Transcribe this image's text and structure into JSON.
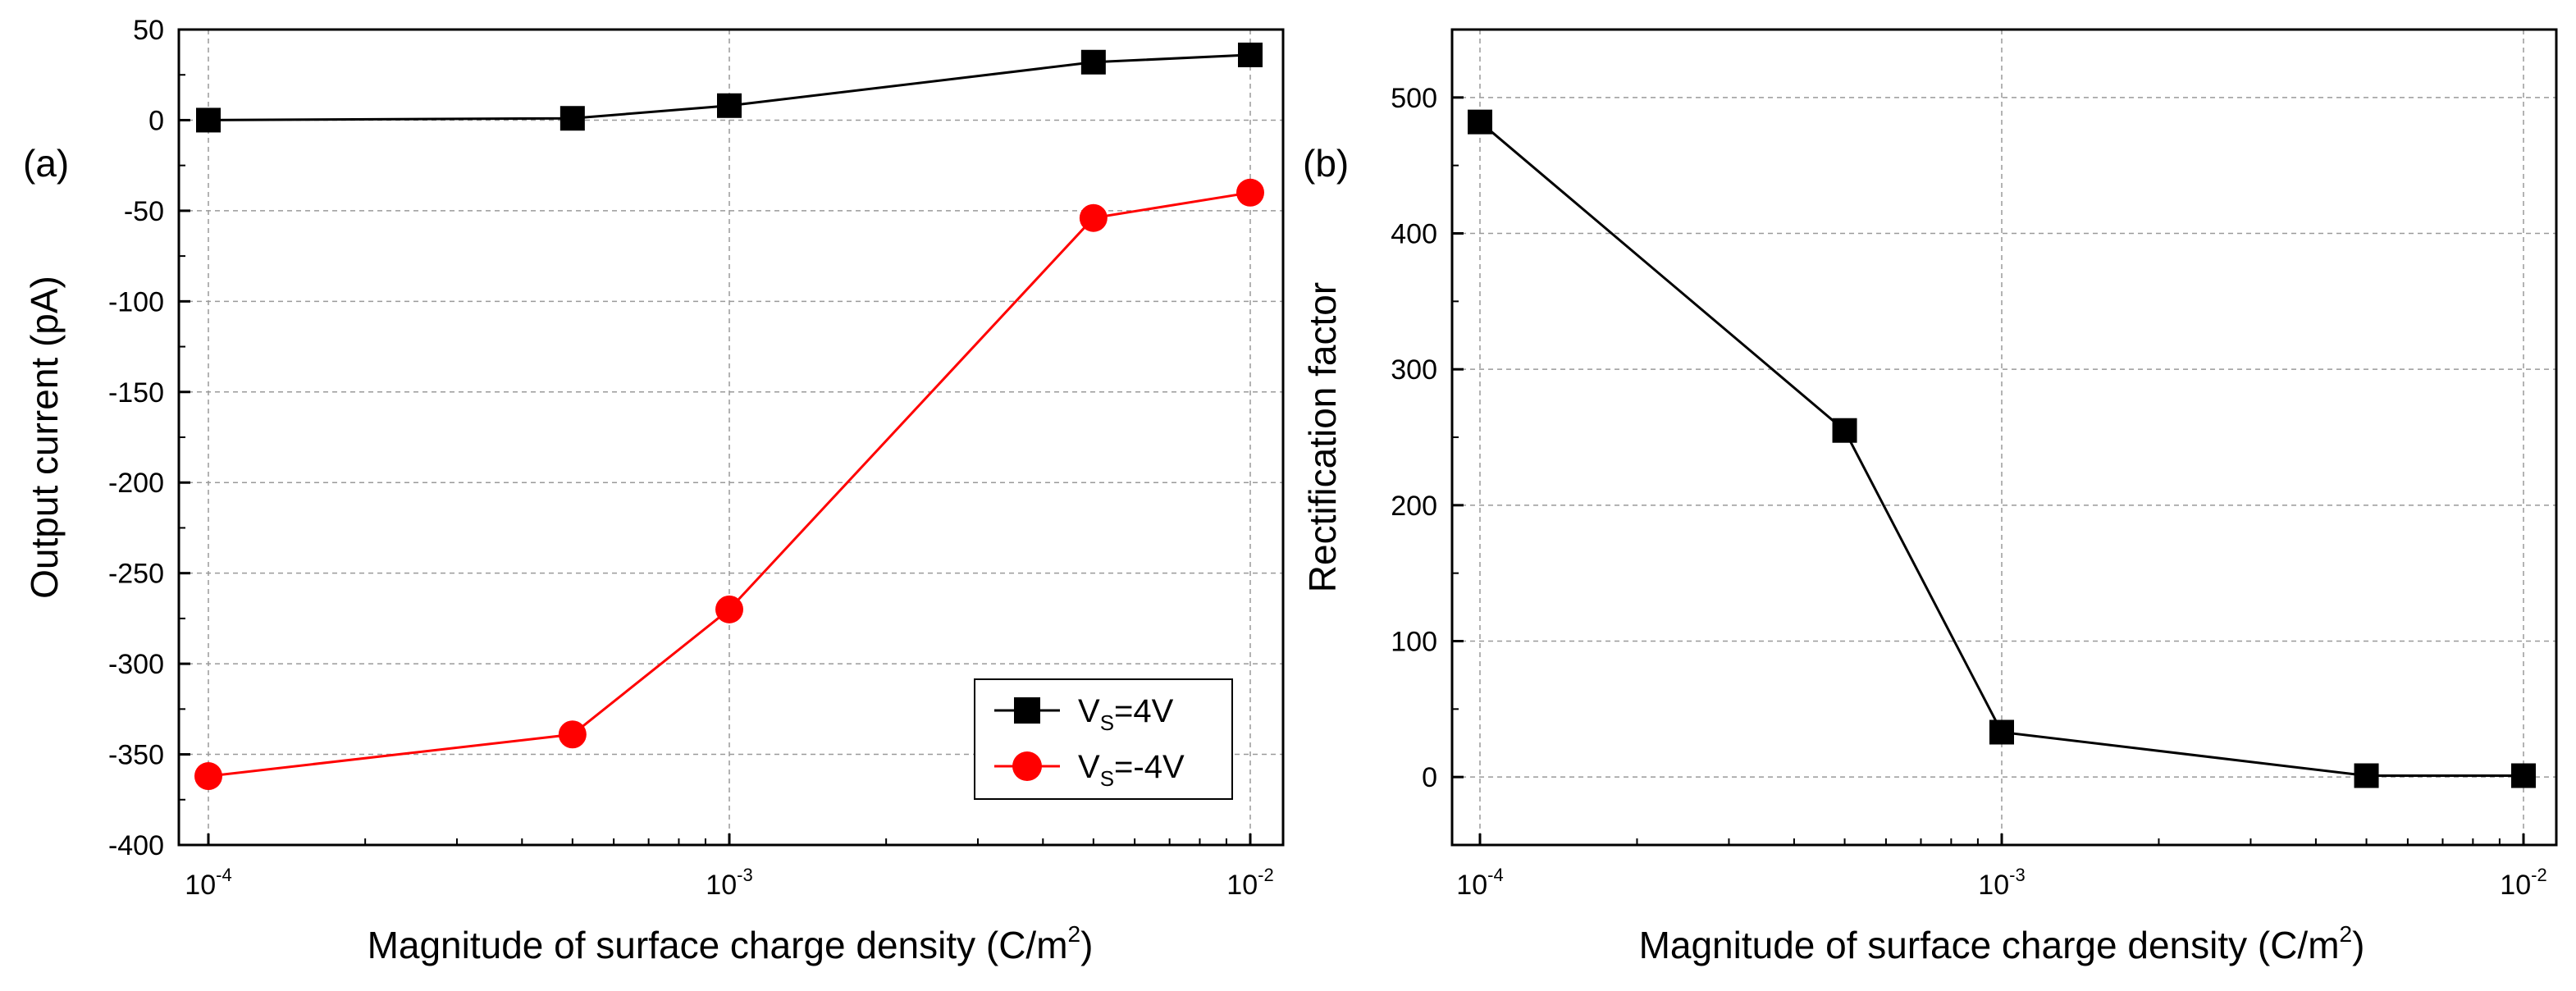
{
  "chart_data": [
    {
      "type": "line",
      "panel_label": "(a)",
      "xscale": "log",
      "x": [
        0.0001,
        0.0005,
        0.001,
        0.005,
        0.01
      ],
      "series": [
        {
          "name": "V_S=4V",
          "name_main": "V",
          "name_sub": "S",
          "name_rest": "=4V",
          "color": "#000000",
          "marker": "square",
          "values": [
            0,
            1,
            8,
            32,
            36
          ]
        },
        {
          "name": "V_S=-4V",
          "name_main": "V",
          "name_sub": "S",
          "name_rest": "=-4V",
          "color": "#ff0000",
          "marker": "circle",
          "values": [
            -362,
            -339,
            -270,
            -54,
            -40
          ]
        }
      ],
      "xlabel_main": "Magnitude of surface charge density (C/m",
      "xlabel_sup": "2",
      "xlabel_end": ")",
      "ylabel": "Output current (pA)",
      "xlim": [
        0.0001,
        0.01
      ],
      "ylim": [
        -400,
        50
      ],
      "yticks": [
        "50",
        "0",
        "-50",
        "-100",
        "-150",
        "-200",
        "-250",
        "-300",
        "-350",
        "-400"
      ],
      "xticks": [
        {
          "base": "10",
          "exp": "-4"
        },
        {
          "base": "10",
          "exp": "-3"
        },
        {
          "base": "10",
          "exp": "-2"
        }
      ],
      "grid": true,
      "legend_position": "bottom-right"
    },
    {
      "type": "line",
      "panel_label": "(b)",
      "xscale": "log",
      "x": [
        0.0001,
        0.0005,
        0.001,
        0.005,
        0.01
      ],
      "series": [
        {
          "name": "Rectification factor",
          "color": "#000000",
          "marker": "square",
          "values": [
            482,
            255,
            33,
            1,
            1
          ]
        }
      ],
      "xlabel_main": "Magnitude of surface charge density (C/m",
      "xlabel_sup": "2",
      "xlabel_end": ")",
      "ylabel": "Rectification factor",
      "xlim": [
        0.0001,
        0.01
      ],
      "ylim": [
        -50,
        550
      ],
      "yticks": [
        "500",
        "400",
        "300",
        "200",
        "100",
        "0"
      ],
      "xticks": [
        {
          "base": "10",
          "exp": "-4"
        },
        {
          "base": "10",
          "exp": "-3"
        },
        {
          "base": "10",
          "exp": "-2"
        }
      ],
      "grid": true
    }
  ]
}
